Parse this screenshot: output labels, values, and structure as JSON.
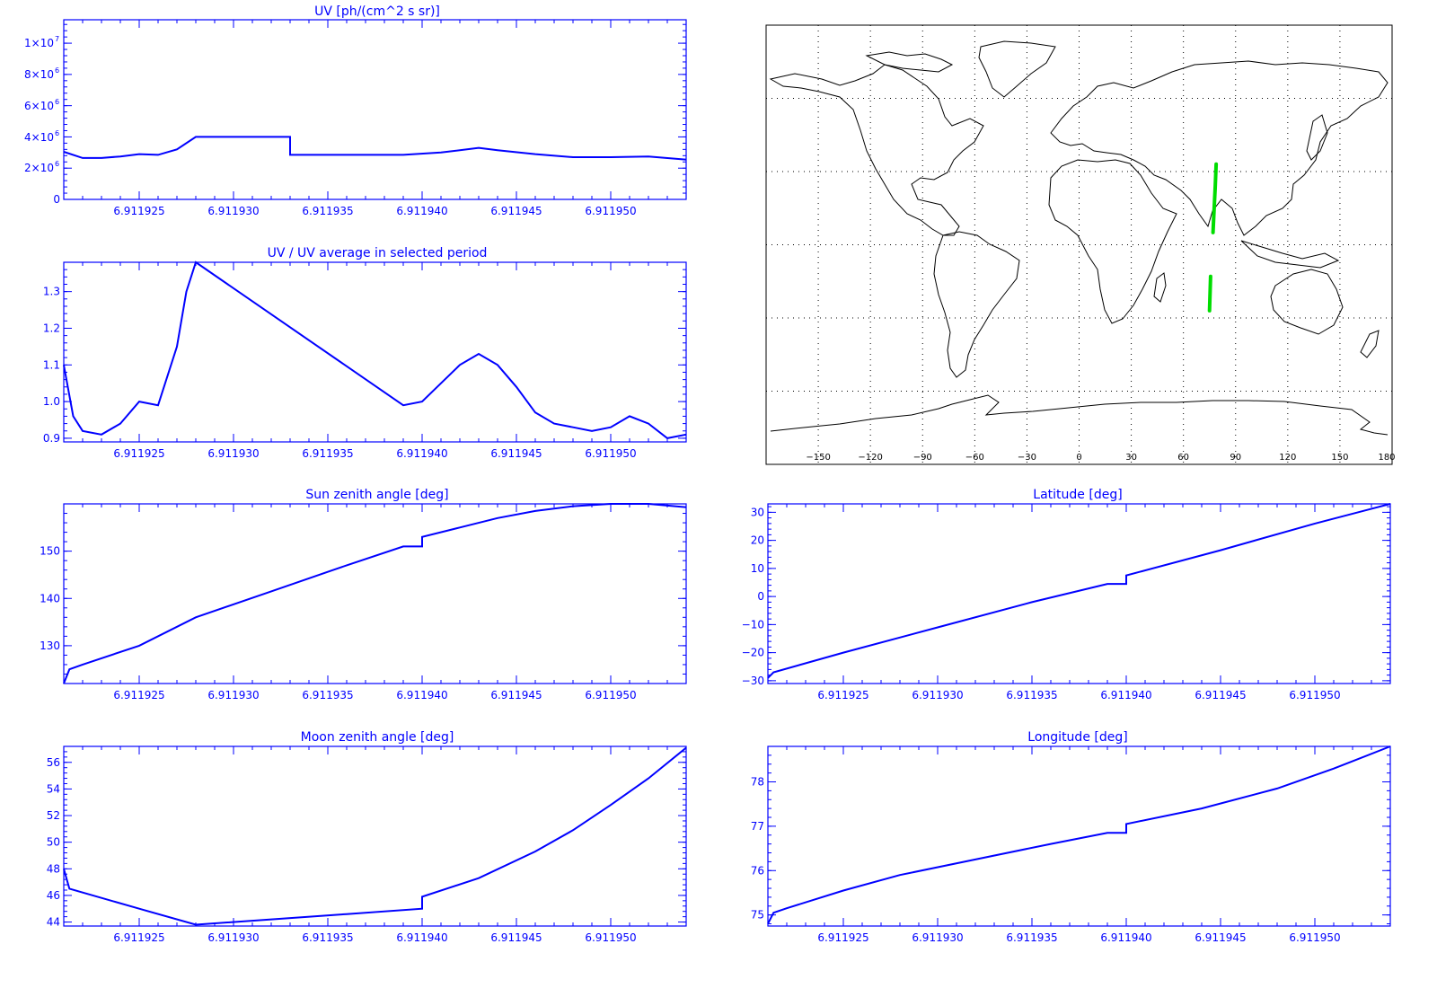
{
  "chart_data": [
    {
      "id": "uv",
      "type": "line",
      "title": "UV [ph/(cm^2 s sr)]",
      "xlim": [
        6.911921,
        6.911954
      ],
      "ylim": [
        0,
        11500000
      ],
      "xticks": [
        6.911925,
        6.91193,
        6.911935,
        6.91194,
        6.911945,
        6.91195
      ],
      "xtick_labels": [
        "6.911925",
        "6.911930",
        "6.911935",
        "6.911940",
        "6.911945",
        "6.911950"
      ],
      "yticks": [
        0,
        2000000,
        4000000,
        6000000,
        8000000,
        10000000
      ],
      "ytick_mantissa": [
        "0",
        "2×10",
        "4×10",
        "6×10",
        "8×10",
        "1×10"
      ],
      "ytick_exponent": [
        "",
        "6",
        "6",
        "6",
        "6",
        "7"
      ],
      "series": [
        {
          "x": [
            6.911921,
            6.911922,
            6.911923,
            6.911924,
            6.911925,
            6.911926,
            6.911927,
            6.911928,
            6.911933,
            6.911933,
            6.911936,
            6.911939,
            6.911941,
            6.911943,
            6.911944,
            6.911946,
            6.911948,
            6.91195,
            6.911952,
            6.911954
          ],
          "y": [
            3050000,
            2650000,
            2650000,
            2750000,
            2900000,
            2850000,
            3200000,
            4000000,
            4000000,
            2850000,
            2850000,
            2850000,
            3000000,
            3300000,
            3150000,
            2900000,
            2700000,
            2700000,
            2750000,
            2550000
          ]
        }
      ]
    },
    {
      "id": "uvratio",
      "type": "line",
      "title": "UV / UV average in selected period",
      "xlim": [
        6.911921,
        6.911954
      ],
      "ylim": [
        0.89,
        1.38
      ],
      "xticks": [
        6.911925,
        6.91193,
        6.911935,
        6.91194,
        6.911945,
        6.91195
      ],
      "xtick_labels": [
        "6.911925",
        "6.911930",
        "6.911935",
        "6.911940",
        "6.911945",
        "6.911950"
      ],
      "yticks": [
        0.9,
        1.0,
        1.1,
        1.2,
        1.3
      ],
      "ytick_labels": [
        "0.9",
        "1.0",
        "1.1",
        "1.2",
        "1.3"
      ],
      "series": [
        {
          "x": [
            6.911921,
            6.9119215,
            6.911922,
            6.911923,
            6.911924,
            6.911925,
            6.911926,
            6.911927,
            6.9119275,
            6.911928,
            6.911939,
            6.91194,
            6.911941,
            6.911942,
            6.911943,
            6.911944,
            6.911945,
            6.911946,
            6.911947,
            6.911948,
            6.911949,
            6.91195,
            6.911951,
            6.911952,
            6.911953,
            6.911954
          ],
          "y": [
            1.1,
            0.96,
            0.92,
            0.91,
            0.94,
            1.0,
            0.99,
            1.15,
            1.3,
            1.38,
            0.99,
            1.0,
            1.05,
            1.1,
            1.13,
            1.1,
            1.04,
            0.97,
            0.94,
            0.93,
            0.92,
            0.93,
            0.96,
            0.94,
            0.9,
            0.91
          ]
        }
      ]
    },
    {
      "id": "sza",
      "type": "line",
      "title": "Sun zenith angle [deg]",
      "xlim": [
        6.911921,
        6.911954
      ],
      "ylim": [
        122,
        160
      ],
      "xticks": [
        6.911925,
        6.91193,
        6.911935,
        6.91194,
        6.911945,
        6.91195
      ],
      "xtick_labels": [
        "6.911925",
        "6.911930",
        "6.911935",
        "6.911940",
        "6.911945",
        "6.911950"
      ],
      "yticks": [
        130,
        140,
        150
      ],
      "ytick_labels": [
        "130",
        "140",
        "150"
      ],
      "series": [
        {
          "x": [
            6.911921,
            6.9119213,
            6.911922,
            6.911925,
            6.911928,
            6.911932,
            6.911936,
            6.911939,
            6.91194,
            6.91194,
            6.911942,
            6.911944,
            6.911946,
            6.911948,
            6.91195,
            6.911952,
            6.911954
          ],
          "y": [
            122,
            125,
            126,
            130,
            136,
            141.5,
            147,
            151,
            151,
            153,
            155,
            157,
            158.5,
            159.5,
            160,
            160,
            159.3
          ]
        }
      ]
    },
    {
      "id": "lat",
      "type": "line",
      "title": "Latitude [deg]",
      "xlim": [
        6.911921,
        6.911954
      ],
      "ylim": [
        -31,
        33
      ],
      "xticks": [
        6.911925,
        6.91193,
        6.911935,
        6.91194,
        6.911945,
        6.91195
      ],
      "xtick_labels": [
        "6.911925",
        "6.911930",
        "6.911935",
        "6.911940",
        "6.911945",
        "6.911950"
      ],
      "yticks": [
        -30,
        -20,
        -10,
        0,
        10,
        20,
        30
      ],
      "ytick_labels": [
        "−30",
        "−20",
        "−10",
        "0",
        "10",
        "20",
        "30"
      ],
      "series": [
        {
          "x": [
            6.911921,
            6.9119213,
            6.911925,
            6.91193,
            6.911935,
            6.911939,
            6.91194,
            6.91194,
            6.911945,
            6.91195,
            6.911954
          ],
          "y": [
            -29,
            -27,
            -20,
            -11,
            -2,
            4.5,
            4.5,
            7.5,
            16.5,
            26,
            33
          ]
        }
      ]
    },
    {
      "id": "mza",
      "type": "line",
      "title": "Moon zenith angle [deg]",
      "xlim": [
        6.911921,
        6.911954
      ],
      "ylim": [
        43.7,
        57.2
      ],
      "xticks": [
        6.911925,
        6.91193,
        6.911935,
        6.91194,
        6.911945,
        6.91195
      ],
      "xtick_labels": [
        "6.911925",
        "6.911930",
        "6.911935",
        "6.911940",
        "6.911945",
        "6.911950"
      ],
      "yticks": [
        44,
        46,
        48,
        50,
        52,
        54,
        56
      ],
      "ytick_labels": [
        "44",
        "46",
        "48",
        "50",
        "52",
        "54",
        "56"
      ],
      "series": [
        {
          "x": [
            6.911921,
            6.9119213,
            6.911925,
            6.911928,
            6.911932,
            6.911936,
            6.91194,
            6.91194,
            6.911943,
            6.911946,
            6.911948,
            6.91195,
            6.911952,
            6.911954
          ],
          "y": [
            48,
            46.5,
            45,
            43.8,
            44.2,
            44.6,
            45,
            45.9,
            47.3,
            49.3,
            50.9,
            52.8,
            54.8,
            57.1
          ]
        }
      ]
    },
    {
      "id": "lon",
      "type": "line",
      "title": "Longitude [deg]",
      "xlim": [
        6.911921,
        6.911954
      ],
      "ylim": [
        74.75,
        78.8
      ],
      "xticks": [
        6.911925,
        6.91193,
        6.911935,
        6.91194,
        6.911945,
        6.91195
      ],
      "xtick_labels": [
        "6.911925",
        "6.911930",
        "6.911935",
        "6.911940",
        "6.911945",
        "6.911950"
      ],
      "yticks": [
        75,
        76,
        77,
        78
      ],
      "ytick_labels": [
        "75",
        "76",
        "77",
        "78"
      ],
      "series": [
        {
          "x": [
            6.911921,
            6.9119213,
            6.911922,
            6.911925,
            6.911928,
            6.911932,
            6.911936,
            6.911939,
            6.91194,
            6.91194,
            6.911944,
            6.911948,
            6.911951,
            6.911954
          ],
          "y": [
            74.8,
            75.05,
            75.15,
            75.55,
            75.9,
            76.25,
            76.6,
            76.85,
            76.85,
            77.05,
            77.4,
            77.85,
            78.3,
            78.8
          ]
        }
      ]
    },
    {
      "id": "map",
      "type": "map",
      "xticks": [
        -150,
        -120,
        -90,
        -60,
        -30,
        0,
        30,
        60,
        90,
        120,
        150,
        180
      ],
      "xtick_labels": [
        "−150",
        "−120",
        "−90",
        "−60",
        "−30",
        "0",
        "30",
        "60",
        "90",
        "120",
        "150",
        "180"
      ],
      "lon_range": [
        -180,
        180
      ],
      "lat_range": [
        -90,
        90
      ],
      "track_color": "#00dd00",
      "track_segments": [
        {
          "lon": [
            77,
            77.5,
            78.3,
            78.8
          ],
          "lat": [
            5,
            12,
            24,
            33
          ]
        },
        {
          "lon": [
            75.0,
            75.3,
            75.6
          ],
          "lat": [
            -27,
            -20,
            -13
          ]
        }
      ]
    }
  ]
}
